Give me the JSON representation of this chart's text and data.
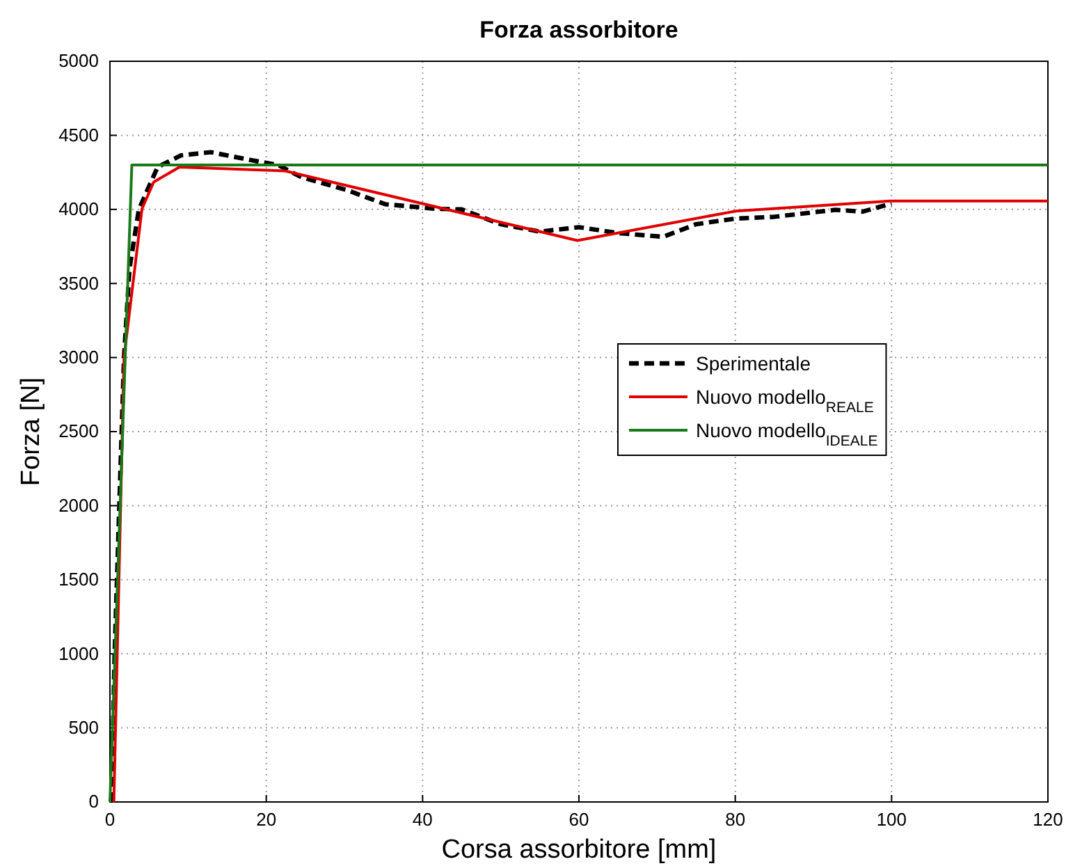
{
  "chart_data": {
    "type": "line",
    "title": "Forza assorbitore",
    "xlabel": "Corsa assorbitore [mm]",
    "ylabel": "Forza [N]",
    "xlim": [
      0,
      120
    ],
    "xticks": [
      0,
      20,
      40,
      60,
      80,
      100,
      120
    ],
    "ylim": [
      0,
      5000
    ],
    "yticks": [
      0,
      500,
      1000,
      1500,
      2000,
      2500,
      3000,
      3500,
      4000,
      4500,
      5000
    ],
    "grid": true,
    "legend": "right",
    "marker": "none",
    "series": [
      {
        "name": "Sperimentale",
        "color": "#000000",
        "line_style": "dashed",
        "x": [
          0.2,
          0.6,
          1.2,
          1.8,
          2.5,
          3.7,
          6.1,
          9.1,
          12.9,
          18,
          21.5,
          24.5,
          30.4,
          35.2,
          41.7,
          45,
          50,
          55,
          60,
          65,
          70.8,
          75,
          80,
          85,
          92.8,
          96.3,
          100
        ],
        "values": [
          0,
          1000,
          2000,
          3000,
          3600,
          4000,
          4286,
          4365,
          4386,
          4333,
          4300,
          4217,
          4129,
          4035,
          4004,
          4000,
          3900,
          3850,
          3880,
          3840,
          3815,
          3900,
          3938,
          3950,
          3997,
          3985,
          4040
        ]
      },
      {
        "name": "Nuovo modello$_{REALE}$",
        "color": "#e00000",
        "line_style": "solid",
        "x": [
          0.5,
          1.8,
          4.1,
          5.6,
          8.9,
          22.4,
          59.8,
          80,
          99.9,
          120
        ],
        "values": [
          0,
          3000,
          4004,
          4185,
          4286,
          4260,
          3790,
          3988,
          4057,
          4057
        ]
      },
      {
        "name": "Nuovo modello$_{IDEALE}$",
        "color": "#1a7a1a",
        "line_style": "solid",
        "x": [
          0,
          2.8,
          120
        ],
        "values": [
          0,
          4300,
          4300
        ]
      }
    ]
  }
}
